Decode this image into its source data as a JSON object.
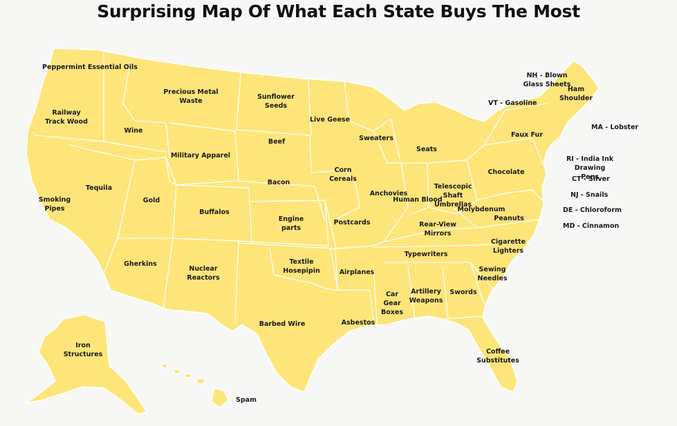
{
  "title": "Surprising Map Of What Each State Buys The Most",
  "colors": {
    "land": "#fde57a",
    "border": "#ffffff",
    "background": "#f7f7f6",
    "text": "#1a1a1a"
  },
  "states": {
    "WA": "Peppermint Essential Oils",
    "OR": "Railway Track Wood",
    "ID": "Wine",
    "MT": "Precious Metal Waste",
    "ND": "Sunflower Seeds",
    "SD": "Beef",
    "WY": "Military Apparel",
    "NE": "Bacon",
    "MN": "Live Geese",
    "WI": "Sweaters",
    "MI": "Seats",
    "IA": "Corn Cereals",
    "NV": "Tequila",
    "CA": "Smoking Pipes",
    "UT": "Gold",
    "CO": "Buffalos",
    "KS": "Engine parts",
    "MO": "Postcards",
    "IL": "Anchovies",
    "IN": "Human Blood",
    "OH": "Telescopic Shaft Umbrellas",
    "PA": "Chocolate",
    "NY": "Faux Fur",
    "WV": "Molybdenum",
    "VA": "Peanuts",
    "KY": "Rear-View Mirrors",
    "TN": "Typewriters",
    "NC": "Cigarette Lighters",
    "SC": "Sewing Needles",
    "GA": "Swords",
    "AL": "Artillery Weapons",
    "MS": "Car Gear Boxes",
    "AR": "Airplanes",
    "LA": "Asbestos",
    "OK": "Textile Hosepipin",
    "TX": "Barbed Wire",
    "NM": "Nuclear Reactors",
    "AZ": "Gherkins",
    "FL": "Coffee Substitutes",
    "ME": "Ham Shoulder",
    "AK": "Iron Structures",
    "HI": "Spam"
  },
  "side_labels": {
    "NH": "NH - Blown Glass Sheets",
    "VT": "VT - Gasoline",
    "MA": "MA - Lobster",
    "RI": "RI - India Ink Drawing Pens",
    "CT": "CT - Silver",
    "NJ": "NJ - Snails",
    "DE": "DE - Chloroform",
    "MD": "MD - Cinnamon"
  }
}
